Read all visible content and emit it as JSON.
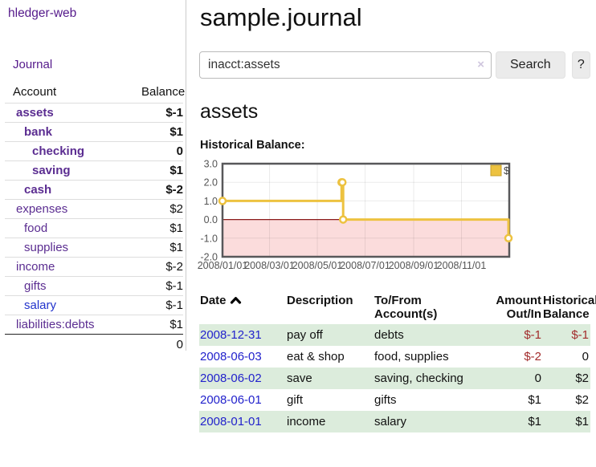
{
  "sidebar": {
    "brand": "hledger-web",
    "nav": [
      "Journal"
    ],
    "accounts_table": {
      "col_account": "Account",
      "col_balance": "Balance",
      "rows": [
        {
          "name": "assets",
          "depth": 1,
          "bold": true,
          "balance": "$-1",
          "neg": "strong"
        },
        {
          "name": "bank",
          "depth": 2,
          "bold": true,
          "balance": "$1",
          "neg": "none"
        },
        {
          "name": "checking",
          "depth": 3,
          "bold": true,
          "balance": "0",
          "neg": "none"
        },
        {
          "name": "saving",
          "depth": 3,
          "bold": true,
          "balance": "$1",
          "neg": "none"
        },
        {
          "name": "cash",
          "depth": 2,
          "bold": true,
          "balance": "$-2",
          "neg": "strong"
        },
        {
          "name": "expenses",
          "depth": 1,
          "bold": false,
          "balance": "$2",
          "neg": "none"
        },
        {
          "name": "food",
          "depth": 2,
          "bold": false,
          "balance": "$1",
          "neg": "none"
        },
        {
          "name": "supplies",
          "depth": 2,
          "bold": false,
          "balance": "$1",
          "neg": "none"
        },
        {
          "name": "income",
          "depth": 1,
          "bold": false,
          "balance": "$-2",
          "neg": "soft"
        },
        {
          "name": "gifts",
          "depth": 2,
          "bold": false,
          "balance": "$-1",
          "neg": "soft"
        },
        {
          "name": "salary",
          "depth": 2,
          "bold": false,
          "balance": "$-1",
          "neg": "soft",
          "blue": true
        },
        {
          "name": "liabilities:debts",
          "depth": 1,
          "bold": false,
          "balance": "$1",
          "neg": "none"
        }
      ],
      "total": "0"
    }
  },
  "main": {
    "title": "sample.journal",
    "search": {
      "value": "inacct:assets",
      "clear_icon": "×",
      "button_label": "Search",
      "help_label": "?"
    },
    "account_heading": "assets",
    "chart_heading": "Historical Balance:",
    "register_table": {
      "columns": [
        "Date",
        "Description",
        "To/From Account(s)",
        "Amount Out/In",
        "Historical Balance"
      ],
      "sort": "date-ascending",
      "rows": [
        {
          "date": "2008-12-31",
          "description": "pay off",
          "accounts": "debts",
          "amount": "$-1",
          "amount_neg": true,
          "balance": "$-1",
          "balance_neg": true
        },
        {
          "date": "2008-06-03",
          "description": "eat & shop",
          "accounts": "food, supplies",
          "amount": "$-2",
          "amount_neg": true,
          "balance": "0",
          "balance_neg": false
        },
        {
          "date": "2008-06-02",
          "description": "save",
          "accounts": "saving, checking",
          "amount": "0",
          "amount_neg": false,
          "balance": "$2",
          "balance_neg": false
        },
        {
          "date": "2008-06-01",
          "description": "gift",
          "accounts": "gifts",
          "amount": "$1",
          "amount_neg": false,
          "balance": "$2",
          "balance_neg": false
        },
        {
          "date": "2008-01-01",
          "description": "income",
          "accounts": "salary",
          "amount": "$1",
          "amount_neg": false,
          "balance": "$1",
          "balance_neg": false
        }
      ]
    }
  },
  "chart_data": {
    "type": "line",
    "step": true,
    "title": "Historical Balance:",
    "series": [
      {
        "name": "$",
        "color": "#edc240",
        "points": [
          [
            "2008-01-01",
            1
          ],
          [
            "2008-06-01",
            2
          ],
          [
            "2008-06-02",
            2
          ],
          [
            "2008-06-03",
            0
          ],
          [
            "2008-12-31",
            -1
          ]
        ]
      }
    ],
    "x_range": [
      "2008-01-01",
      "2009-01-01"
    ],
    "x_tick_labels": [
      "2008/01/01",
      "2008/03/01",
      "2008/05/01",
      "2008/07/01",
      "2008/09/01",
      "2008/11/01"
    ],
    "y_tick_labels": [
      "3.0",
      "2.0",
      "1.0",
      "0.0",
      "-1.0",
      "-2.0"
    ],
    "ylim": [
      -2,
      3
    ],
    "grid": true,
    "legend_position": "top-right",
    "negative_region_color": "#fbdcdc",
    "zero_line_color": "#8b1a1a",
    "border_color": "#58585a",
    "tick_text_color": "#545454"
  },
  "colors": {
    "link_purple": "#551a8b",
    "account_purple": "#5b2d91",
    "link_blue": "#2222cc",
    "negative_strong": "#a01818",
    "negative_soft": "#b97a7a",
    "register_negative": "#a22c2c",
    "row_green": "#dcecdc",
    "series_gold": "#edc240"
  }
}
